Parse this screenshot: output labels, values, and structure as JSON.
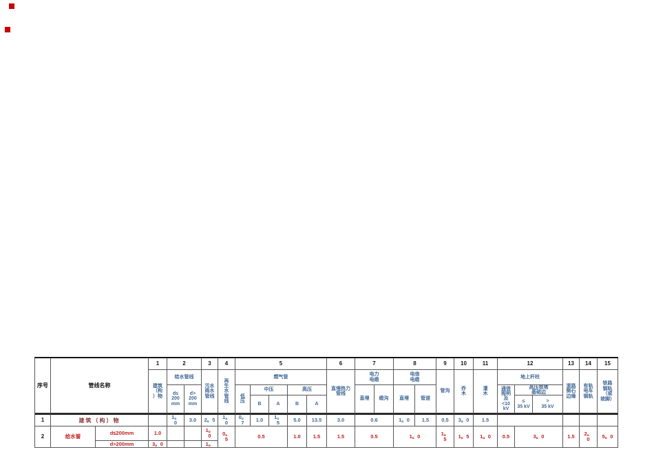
{
  "page": {
    "background": "#ffffff",
    "marker_color": "#cc0000"
  },
  "table": {
    "accent_blue": "#3f6795",
    "accent_red": "#c02020",
    "corner": {
      "seq": "序号",
      "name": "管线名称"
    },
    "col_numbers": [
      "1",
      "2",
      "3",
      "4",
      "5",
      "6",
      "7",
      "8",
      "9",
      "10",
      "11",
      "12",
      "13",
      "14",
      "15"
    ],
    "headers": {
      "building": "建筑\n（构\n）物",
      "water_group": "给水管线",
      "water_small": "d≤\n200\nmm",
      "water_large": "d>\n200\nmm",
      "sewage": "污水\n雨水\n管线",
      "reclaimed": "再\n生\n水\n管\n线",
      "gas_group": "燃气管",
      "gas_low": "低\n压",
      "gas_mid": "中压",
      "gas_high": "高压",
      "gas_mid_b": "B",
      "gas_mid_a": "A",
      "gas_high_b": "B",
      "gas_high_a": "A",
      "heating": "直埋热力\n管线",
      "power_group": "电力\n电缆",
      "power_direct": "直埋",
      "power_trench": "缆沟",
      "telecom_group": "电信\n电缆",
      "telecom_direct": "直埋",
      "telecom_duct": "管道",
      "trench": "管沟",
      "tree": "乔\n木",
      "shrub": "灌\n木",
      "pole_group": "地上杆柱",
      "pole_comm": "通信\n照明\n及\n<10\nkV",
      "pole_hv": "高压铁塔\n基础边",
      "hv_le35": "≤\n35 kV",
      "hv_gt35": ">\n35 kV",
      "curb": "道路\n侧石\n边缘",
      "tram": "有轨\n电车\n钢轨",
      "rail": "铁路\n钢轨\n（或\n坡脚）"
    },
    "row1": {
      "seq": "1",
      "name": "建筑（构）物",
      "water_small": "1。\n0",
      "water_large": "3.0",
      "sewage": "2。5",
      "reclaimed": "1。\n0",
      "gas_low": "0。\n7",
      "gas_mid_b": "1.0",
      "gas_mid_a": "1。\n5",
      "gas_high_b": "5.0",
      "gas_high_a": "13.5",
      "heating": "3.0",
      "power": "0.6",
      "telecom_direct": "1。0",
      "telecom_duct": "1.5",
      "trench": "0.5",
      "tree": "3。0",
      "shrub": "1.5"
    },
    "row2": {
      "seq": "2",
      "name": "给水管",
      "spec_small": "d≤200mm",
      "spec_large": "d>200mm",
      "building_small": "1.0",
      "building_large": "3。0",
      "sewage_small": "1。\n0",
      "sewage_large": "1。",
      "reclaimed": "0。\n5",
      "gas_low_mid": "0.5",
      "gas_high_b": "1.0",
      "gas_high_a": "1.5",
      "heating": "1.5",
      "power": "0.5",
      "telecom": "1。0",
      "trench": "1。\n5",
      "tree": "1。5",
      "shrub": "1。0",
      "pole_comm": "0.5",
      "pole_hv": "3。0",
      "curb": "1.5",
      "tram": "2。\n0",
      "rail": "5。0"
    }
  }
}
